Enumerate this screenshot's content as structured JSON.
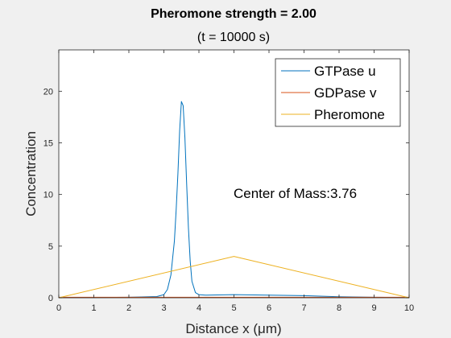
{
  "chart_data": {
    "type": "line",
    "title": "Pheromone strength = 2.00",
    "subtitle": "(t = 10000 s)",
    "xlabel": "Distance x (μm)",
    "ylabel": "Concentration",
    "xlim": [
      0,
      10
    ],
    "ylim": [
      0,
      24
    ],
    "xticks": [
      0,
      1,
      2,
      3,
      4,
      5,
      6,
      7,
      8,
      9,
      10
    ],
    "yticks": [
      0,
      5,
      10,
      15,
      20
    ],
    "grid": false,
    "legend_position": "top-right",
    "annotation": "Center of Mass:3.76",
    "series": [
      {
        "name": "GTPase u",
        "color": "#0072BD",
        "x": [
          0,
          1,
          2,
          2.8,
          3.0,
          3.1,
          3.2,
          3.3,
          3.35,
          3.4,
          3.45,
          3.5,
          3.55,
          3.6,
          3.65,
          3.7,
          3.75,
          3.8,
          3.9,
          4.0,
          4.2,
          5,
          6,
          7,
          8,
          9,
          10
        ],
        "y": [
          0.02,
          0.02,
          0.05,
          0.12,
          0.3,
          0.8,
          2.2,
          5.5,
          8.5,
          12.0,
          16.2,
          19.0,
          18.6,
          15.5,
          11.0,
          6.8,
          3.6,
          1.6,
          0.5,
          0.3,
          0.25,
          0.3,
          0.25,
          0.2,
          0.1,
          0.05,
          0.02
        ]
      },
      {
        "name": "GDPase v",
        "color": "#D95319",
        "x": [
          0,
          10
        ],
        "y": [
          0.05,
          0.05
        ]
      },
      {
        "name": "Pheromone",
        "color": "#EDB120",
        "x": [
          0,
          5,
          10
        ],
        "y": [
          0,
          4,
          0
        ]
      }
    ]
  }
}
